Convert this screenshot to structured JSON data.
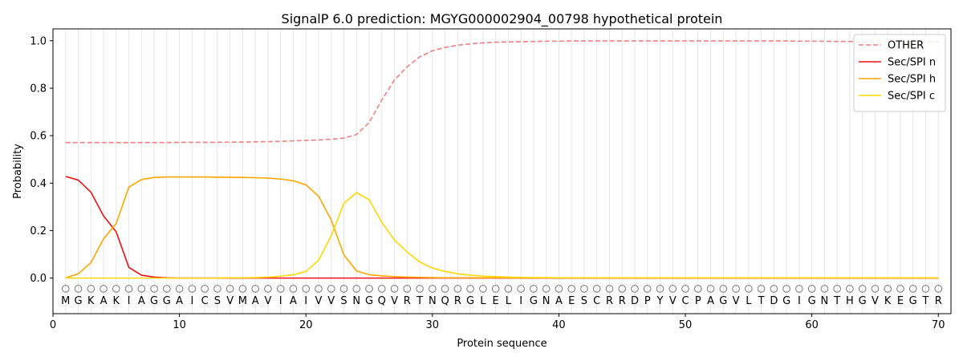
{
  "chart_data": {
    "type": "line",
    "title": "SignalP 6.0 prediction: MGYG000002904_00798 hypothetical protein",
    "xlabel": "Protein sequence",
    "ylabel": "Probability",
    "xlim": [
      0,
      71
    ],
    "ylim": [
      -0.15,
      1.05
    ],
    "x_ticks": [
      0,
      10,
      20,
      30,
      40,
      50,
      60,
      70
    ],
    "y_ticks": [
      0.0,
      0.2,
      0.4,
      0.6,
      0.8,
      1.0
    ],
    "x_tick_labels": [
      "0",
      "10",
      "20",
      "30",
      "40",
      "50",
      "60",
      "70"
    ],
    "y_tick_labels": [
      "0.0",
      "0.2",
      "0.4",
      "0.6",
      "0.8",
      "1.0"
    ],
    "legend_position": "top-right",
    "sequence": [
      "M",
      "G",
      "K",
      "A",
      "K",
      "I",
      "A",
      "G",
      "G",
      "A",
      "I",
      "C",
      "S",
      "V",
      "M",
      "A",
      "V",
      "I",
      "A",
      "I",
      "V",
      "V",
      "S",
      "N",
      "G",
      "Q",
      "V",
      "R",
      "T",
      "N",
      "Q",
      "R",
      "G",
      "L",
      "E",
      "L",
      "I",
      "G",
      "N",
      "A",
      "E",
      "S",
      "C",
      "R",
      "R",
      "D",
      "P",
      "Y",
      "V",
      "C",
      "P",
      "A",
      "G",
      "V",
      "L",
      "T",
      "D",
      "G",
      "I",
      "G",
      "N",
      "T",
      "H",
      "G",
      "V",
      "K",
      "E",
      "G",
      "T",
      "R"
    ],
    "marker_label": "O",
    "series": [
      {
        "name": "OTHER",
        "color": "#f08080",
        "style": "dashed",
        "values": [
          0.571,
          0.571,
          0.571,
          0.571,
          0.571,
          0.571,
          0.571,
          0.571,
          0.571,
          0.572,
          0.572,
          0.572,
          0.572,
          0.573,
          0.573,
          0.574,
          0.575,
          0.576,
          0.578,
          0.58,
          0.582,
          0.585,
          0.59,
          0.605,
          0.655,
          0.75,
          0.835,
          0.89,
          0.932,
          0.958,
          0.972,
          0.981,
          0.987,
          0.991,
          0.994,
          0.995,
          0.996,
          0.997,
          0.998,
          0.998,
          0.999,
          0.999,
          0.999,
          0.999,
          0.999,
          0.999,
          0.999,
          0.999,
          0.999,
          0.999,
          0.999,
          0.999,
          0.999,
          0.999,
          0.999,
          0.999,
          0.999,
          0.999,
          0.998,
          0.998,
          0.998,
          0.997,
          0.997,
          0.996,
          0.996,
          0.995,
          0.995,
          0.995,
          0.995,
          0.995
        ]
      },
      {
        "name": "Sec/SPI n",
        "color": "#ee1111",
        "style": "solid",
        "values": [
          0.428,
          0.413,
          0.362,
          0.262,
          0.195,
          0.045,
          0.012,
          0.004,
          0.001,
          0,
          0,
          0,
          0,
          0,
          0,
          0,
          0,
          0,
          0,
          0,
          0,
          0,
          0,
          0,
          0,
          0,
          0,
          0,
          0,
          0,
          0,
          0,
          0,
          0,
          0,
          0,
          0,
          0,
          0,
          0,
          0,
          0,
          0,
          0,
          0,
          0,
          0,
          0,
          0,
          0,
          0,
          0,
          0,
          0,
          0,
          0,
          0,
          0,
          0,
          0,
          0,
          0,
          0,
          0,
          0,
          0,
          0,
          0,
          0,
          0
        ]
      },
      {
        "name": "Sec/SPI h",
        "color": "#ffa500",
        "style": "solid",
        "values": [
          0.001,
          0.018,
          0.065,
          0.165,
          0.23,
          0.383,
          0.415,
          0.424,
          0.426,
          0.426,
          0.426,
          0.426,
          0.425,
          0.425,
          0.424,
          0.423,
          0.421,
          0.417,
          0.41,
          0.393,
          0.345,
          0.245,
          0.098,
          0.03,
          0.014,
          0.009,
          0.006,
          0.004,
          0.003,
          0.002,
          0.001,
          0.001,
          0.001,
          0.001,
          0.001,
          0.001,
          0.001,
          0.001,
          0.001,
          0.001,
          0.001,
          0.001,
          0.001,
          0.001,
          0.001,
          0.001,
          0.001,
          0.001,
          0.001,
          0.001,
          0.001,
          0.001,
          0.001,
          0.001,
          0.001,
          0.001,
          0.001,
          0.001,
          0.001,
          0.001,
          0.001,
          0.001,
          0.001,
          0.001,
          0.001,
          0.001,
          0.001,
          0.001,
          0.001,
          0.001
        ]
      },
      {
        "name": "Sec/SPI c",
        "color": "#ffd700",
        "style": "solid",
        "values": [
          0,
          0,
          0,
          0,
          0,
          0,
          0,
          0,
          0,
          0,
          0,
          0,
          0,
          0.001,
          0.001,
          0.002,
          0.004,
          0.008,
          0.014,
          0.028,
          0.075,
          0.178,
          0.315,
          0.36,
          0.33,
          0.235,
          0.16,
          0.11,
          0.068,
          0.042,
          0.028,
          0.018,
          0.012,
          0.008,
          0.006,
          0.004,
          0.003,
          0.002,
          0.002,
          0.001,
          0.001,
          0.001,
          0.001,
          0.001,
          0.001,
          0.001,
          0.001,
          0.001,
          0.001,
          0.001,
          0.001,
          0.001,
          0.001,
          0.001,
          0.001,
          0.001,
          0.001,
          0.001,
          0.001,
          0.001,
          0.001,
          0.001,
          0.001,
          0.001,
          0.001,
          0.001,
          0.001,
          0.001,
          0.001,
          0.001
        ]
      }
    ]
  }
}
